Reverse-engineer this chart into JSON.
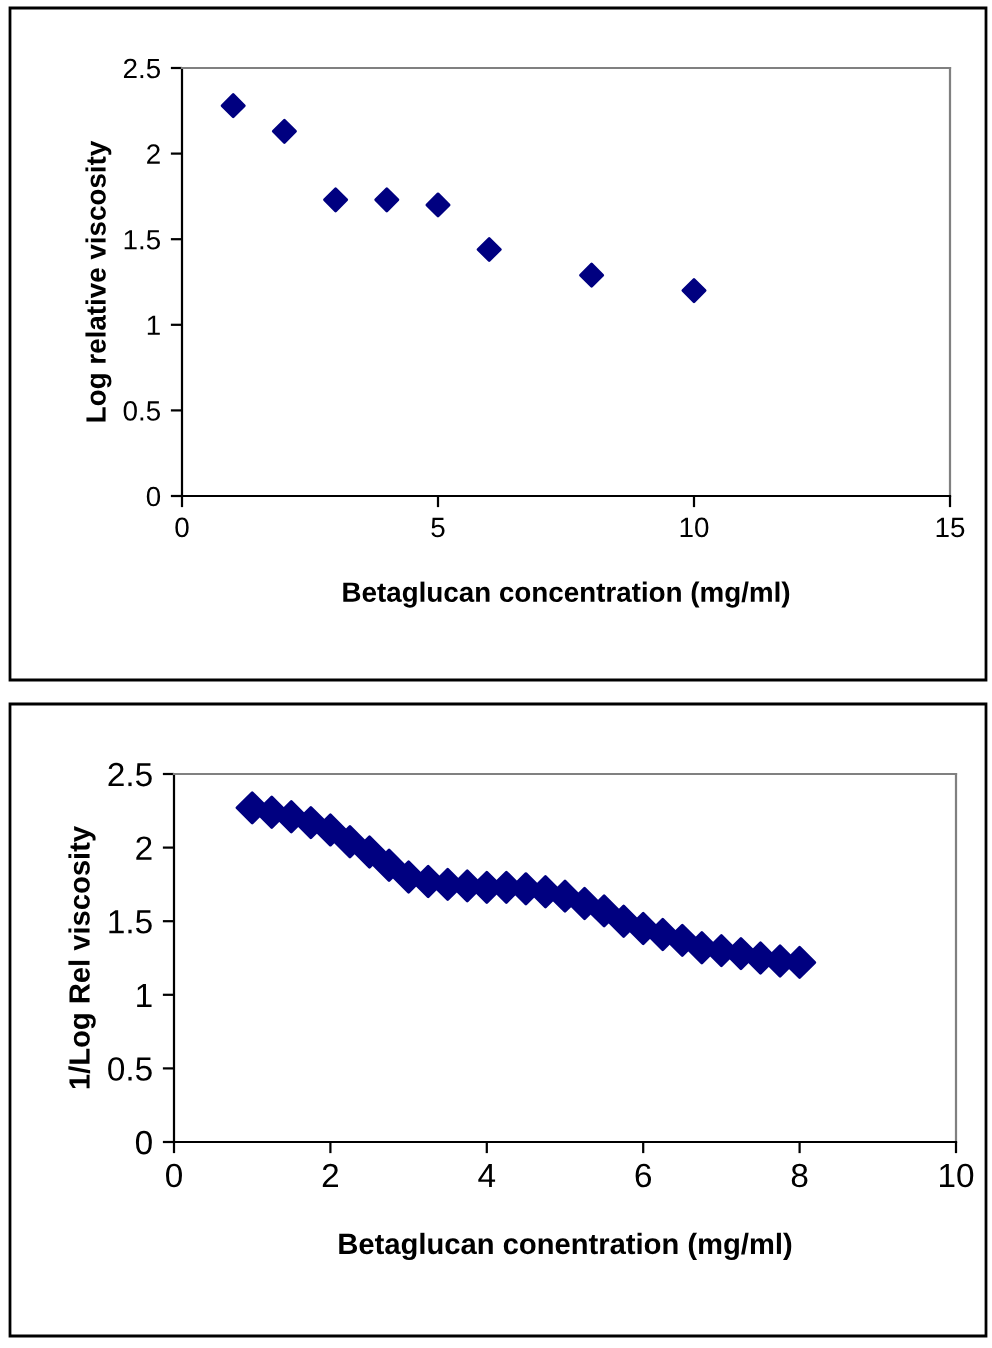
{
  "chart_data": [
    {
      "type": "scatter",
      "xlabel": "Betaglucan concentration (mg/ml)",
      "ylabel": "Log relative viscosity",
      "x": [
        1,
        2,
        3,
        4,
        5,
        6,
        8,
        10
      ],
      "series": [
        {
          "color": "#000080",
          "values": [
            2.28,
            2.13,
            1.73,
            1.73,
            1.7,
            1.44,
            1.29,
            1.2
          ]
        }
      ],
      "xlim": [
        0,
        15
      ],
      "xticks": [
        0,
        5,
        10,
        15
      ],
      "ylim": [
        0,
        2.5
      ],
      "yticks": [
        0,
        0.5,
        1,
        1.5,
        2,
        2.5
      ],
      "grid": false,
      "legend": false,
      "marker": "diamond"
    },
    {
      "type": "scatter",
      "xlabel": "Betaglucan conentration (mg/ml)",
      "ylabel": "1/Log Rel viscosity",
      "x": [
        1,
        1.25,
        1.5,
        1.75,
        2,
        2.25,
        2.5,
        2.75,
        3,
        3.25,
        3.5,
        3.75,
        4,
        4.25,
        4.5,
        4.75,
        5,
        5.25,
        5.5,
        5.75,
        6,
        6.25,
        6.5,
        6.75,
        7,
        7.25,
        7.5,
        7.75,
        8
      ],
      "series": [
        {
          "color": "#000080",
          "values": [
            2.27,
            2.24,
            2.21,
            2.17,
            2.12,
            2.04,
            1.97,
            1.88,
            1.8,
            1.77,
            1.75,
            1.74,
            1.73,
            1.73,
            1.72,
            1.7,
            1.67,
            1.62,
            1.57,
            1.5,
            1.45,
            1.41,
            1.37,
            1.32,
            1.3,
            1.28,
            1.25,
            1.23,
            1.22
          ]
        }
      ],
      "xlim": [
        0,
        10
      ],
      "xticks": [
        0,
        2,
        4,
        6,
        8,
        10
      ],
      "ylim": [
        0,
        2.5
      ],
      "yticks": [
        0,
        0.5,
        1,
        1.5,
        2,
        2.5
      ],
      "grid": false,
      "legend": false,
      "marker": "diamond"
    }
  ]
}
